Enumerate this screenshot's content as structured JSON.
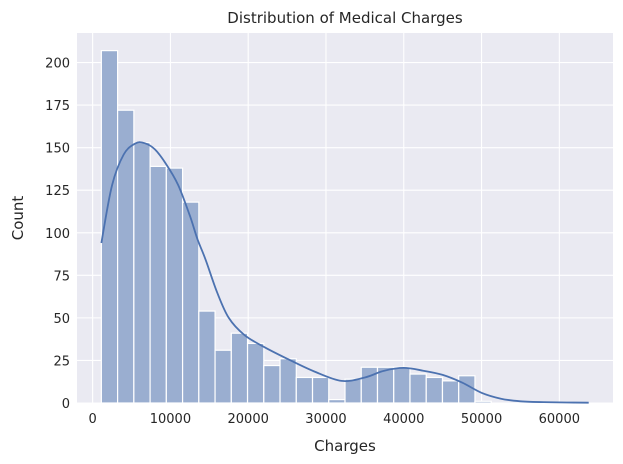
{
  "chart_data": {
    "type": "bar",
    "subtype": "histogram_with_kde",
    "title": "Distribution of Medical Charges",
    "xlabel": "Charges",
    "ylabel": "Count",
    "xlim": [
      -2010,
      66900
    ],
    "ylim": [
      0,
      217.35
    ],
    "xticks": [
      0,
      10000,
      20000,
      30000,
      40000,
      50000,
      60000
    ],
    "xtick_labels": [
      "0",
      "10000",
      "20000",
      "30000",
      "40000",
      "50000",
      "60000"
    ],
    "yticks": [
      0,
      25,
      50,
      75,
      100,
      125,
      150,
      175,
      200
    ],
    "ytick_labels": [
      "0",
      "25",
      "50",
      "75",
      "100",
      "125",
      "150",
      "175",
      "200"
    ],
    "grid": true,
    "legend": null,
    "bin_start": 1121.87,
    "bin_width": 2088.29,
    "bin_count": 30,
    "values": [
      207,
      172,
      153,
      139,
      138,
      118,
      54,
      31,
      41,
      35,
      22,
      26,
      15,
      15,
      2,
      14,
      21,
      21,
      21,
      17,
      15,
      13,
      16,
      1,
      0,
      0,
      0,
      0,
      0,
      0
    ],
    "kde": {
      "x": [
        1122,
        2500,
        4000,
        5500,
        6700,
        8000,
        9500,
        11000,
        12500,
        13500,
        14500,
        16000,
        17500,
        19500,
        22000,
        25000,
        28500,
        32000,
        35000,
        37500,
        40000,
        42500,
        45000,
        47500,
        50000,
        52500,
        55000,
        58000,
        61000,
        63770
      ],
      "y": [
        94,
        128,
        146,
        152.5,
        152.6,
        149,
        140,
        128,
        110,
        96,
        84.5,
        65,
        50,
        40,
        33,
        26,
        18.5,
        13,
        15,
        19,
        20.6,
        19,
        16.5,
        12,
        6,
        2.5,
        1,
        0.5,
        0.3,
        0.2
      ]
    },
    "colors": {
      "bar_fill": "#9aaed0",
      "bar_edge": "#ffffff",
      "kde_line": "#4c72b0",
      "plot_bg": "#eaeaf2",
      "grid": "#ffffff",
      "text": "#262626"
    }
  }
}
